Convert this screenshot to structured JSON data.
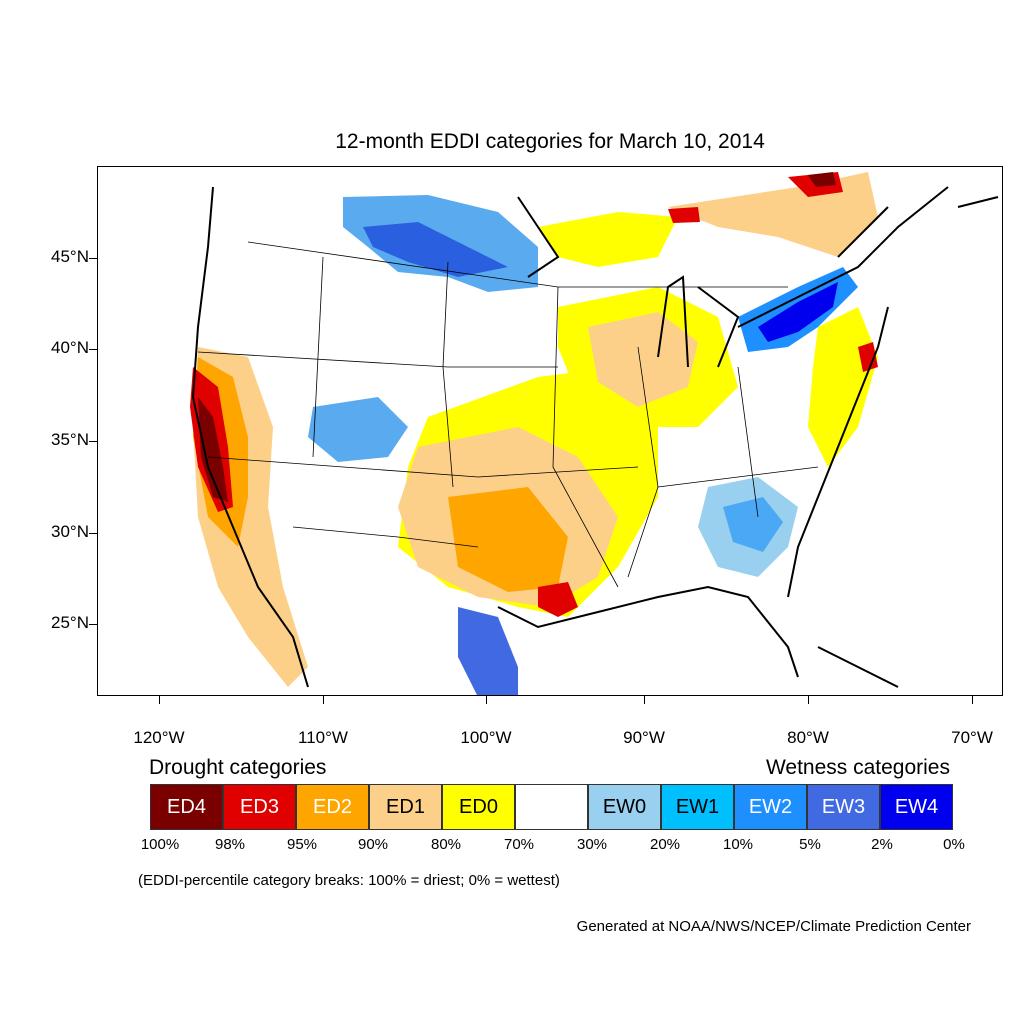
{
  "title": "12-month EDDI categories for March 10, 2014",
  "lat_labels": [
    "45°N",
    "40°N",
    "35°N",
    "30°N",
    "25°N"
  ],
  "lon_labels": [
    "120°W",
    "110°W",
    "100°W",
    "90°W",
    "80°W",
    "70°W"
  ],
  "legend": {
    "drought_heading": "Drought categories",
    "wetness_heading": "Wetness categories",
    "categories": [
      {
        "label": "ED4",
        "color": "#7a0000",
        "text_color": "#ffffff"
      },
      {
        "label": "ED3",
        "color": "#e00000",
        "text_color": "#ffffff"
      },
      {
        "label": "ED2",
        "color": "#ffa500",
        "text_color": "#ffffff"
      },
      {
        "label": "ED1",
        "color": "#fdd08a",
        "text_color": "#000000"
      },
      {
        "label": "ED0",
        "color": "#ffff00",
        "text_color": "#000000"
      },
      {
        "label": "",
        "color": "#ffffff",
        "text_color": "#000000"
      },
      {
        "label": "EW0",
        "color": "#9ad0ef",
        "text_color": "#000000"
      },
      {
        "label": "EW1",
        "color": "#00bfff",
        "text_color": "#000000"
      },
      {
        "label": "EW2",
        "color": "#1e8fff",
        "text_color": "#ffffff"
      },
      {
        "label": "EW3",
        "color": "#4169e1",
        "text_color": "#ffffff"
      },
      {
        "label": "EW4",
        "color": "#0000ee",
        "text_color": "#ffffff"
      }
    ],
    "breaks": [
      "100%",
      "98%",
      "95%",
      "90%",
      "80%",
      "70%",
      "30%",
      "20%",
      "10%",
      "5%",
      "2%",
      "0%"
    ]
  },
  "note": "(EDDI-percentile category breaks: 100% = driest; 0% = wettest)",
  "credit": "Generated at NOAA/NWS/NCEP/Climate Prediction Center"
}
